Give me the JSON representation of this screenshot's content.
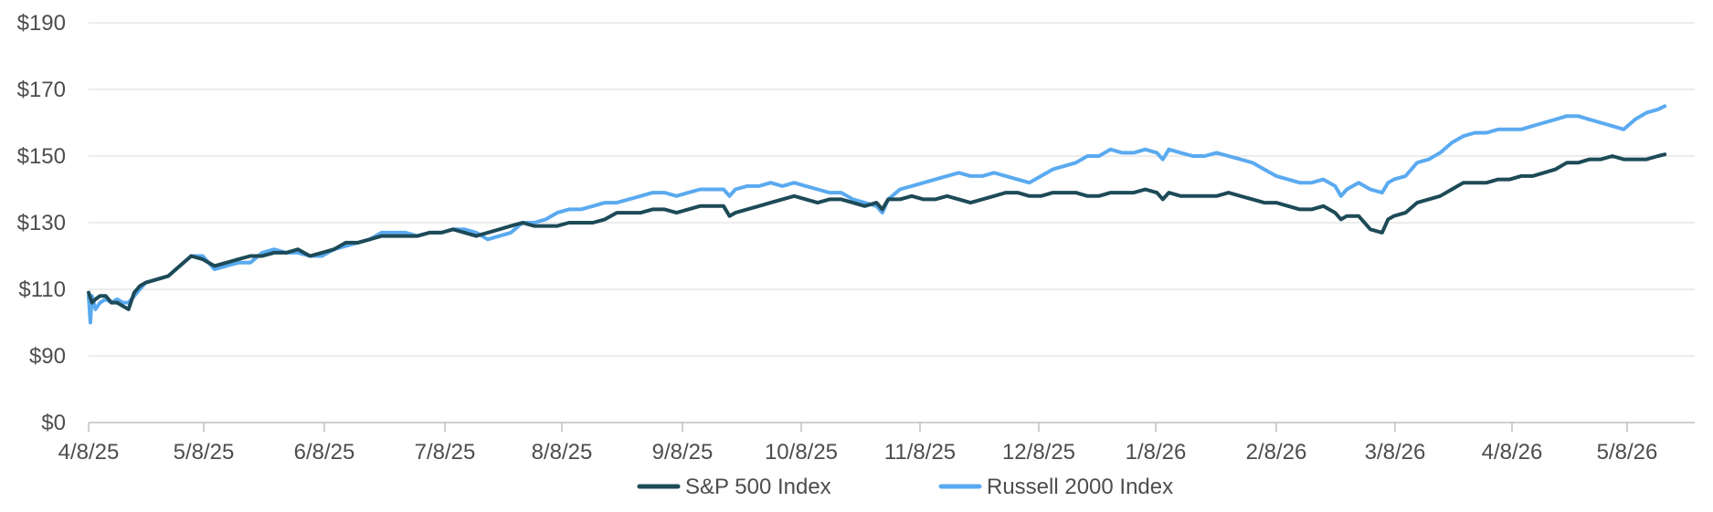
{
  "chart_data": {
    "type": "line",
    "y_ticks": [
      "$0",
      "$90",
      "$110",
      "$130",
      "$150",
      "$170",
      "$190"
    ],
    "x_ticks": [
      "4/8/25",
      "5/8/25",
      "6/8/25",
      "7/8/25",
      "8/8/25",
      "9/8/25",
      "10/8/25",
      "11/8/25",
      "12/8/25",
      "1/8/26",
      "2/8/26",
      "3/8/26",
      "4/8/26",
      "5/8/26"
    ],
    "grid": true,
    "legend_position": "bottom",
    "series": [
      {
        "name": "S&P 500 Index",
        "color": "#1d4a57",
        "points": [
          [
            0,
            109
          ],
          [
            0.3,
            106
          ],
          [
            0.6,
            107
          ],
          [
            1,
            108
          ],
          [
            1.5,
            108
          ],
          [
            2,
            106
          ],
          [
            2.5,
            106
          ],
          [
            3,
            105
          ],
          [
            3.5,
            104
          ],
          [
            4,
            109
          ],
          [
            4.5,
            111
          ],
          [
            5,
            112
          ],
          [
            6,
            113
          ],
          [
            7,
            114
          ],
          [
            8,
            117
          ],
          [
            9,
            120
          ],
          [
            10,
            119
          ],
          [
            11,
            117
          ],
          [
            12,
            118
          ],
          [
            13,
            119
          ],
          [
            14,
            120
          ],
          [
            15,
            120
          ],
          [
            16,
            121
          ],
          [
            17,
            121
          ],
          [
            18,
            122
          ],
          [
            19,
            120
          ],
          [
            20,
            121
          ],
          [
            21,
            122
          ],
          [
            22,
            124
          ],
          [
            23,
            124
          ],
          [
            24,
            125
          ],
          [
            25,
            126
          ],
          [
            26,
            126
          ],
          [
            27,
            126
          ],
          [
            28,
            126
          ],
          [
            29,
            127
          ],
          [
            30,
            127
          ],
          [
            31,
            128
          ],
          [
            32,
            127
          ],
          [
            33,
            126
          ],
          [
            34,
            127
          ],
          [
            35,
            128
          ],
          [
            36,
            129
          ],
          [
            37,
            130
          ],
          [
            38,
            129
          ],
          [
            39,
            129
          ],
          [
            40,
            129
          ],
          [
            41,
            130
          ],
          [
            42,
            130
          ],
          [
            43,
            130
          ],
          [
            44,
            131
          ],
          [
            45,
            133
          ],
          [
            46,
            133
          ],
          [
            47,
            133
          ],
          [
            48,
            134
          ],
          [
            49,
            134
          ],
          [
            50,
            133
          ],
          [
            51,
            134
          ],
          [
            52,
            135
          ],
          [
            53,
            135
          ],
          [
            54,
            135
          ],
          [
            54.5,
            132
          ],
          [
            55,
            133
          ],
          [
            56,
            134
          ],
          [
            57,
            135
          ],
          [
            58,
            136
          ],
          [
            59,
            137
          ],
          [
            60,
            138
          ],
          [
            61,
            137
          ],
          [
            62,
            136
          ],
          [
            63,
            137
          ],
          [
            64,
            137
          ],
          [
            65,
            136
          ],
          [
            66,
            135
          ],
          [
            67,
            136
          ],
          [
            67.5,
            134
          ],
          [
            68,
            137
          ],
          [
            69,
            137
          ],
          [
            70,
            138
          ],
          [
            71,
            137
          ],
          [
            72,
            137
          ],
          [
            73,
            138
          ],
          [
            74,
            137
          ],
          [
            75,
            136
          ],
          [
            76,
            137
          ],
          [
            77,
            138
          ],
          [
            78,
            139
          ],
          [
            79,
            139
          ],
          [
            80,
            138
          ],
          [
            81,
            138
          ],
          [
            82,
            139
          ],
          [
            83,
            139
          ],
          [
            84,
            139
          ],
          [
            85,
            138
          ],
          [
            86,
            138
          ],
          [
            87,
            139
          ],
          [
            88,
            139
          ],
          [
            89,
            139
          ],
          [
            90,
            140
          ],
          [
            91,
            139
          ],
          [
            91.5,
            137
          ],
          [
            92,
            139
          ],
          [
            93,
            138
          ],
          [
            94,
            138
          ],
          [
            95,
            138
          ],
          [
            96,
            138
          ],
          [
            97,
            139
          ],
          [
            98,
            138
          ],
          [
            99,
            137
          ],
          [
            100,
            136
          ],
          [
            101,
            136
          ],
          [
            102,
            135
          ],
          [
            103,
            134
          ],
          [
            104,
            134
          ],
          [
            105,
            135
          ],
          [
            106,
            133
          ],
          [
            106.5,
            131
          ],
          [
            107,
            132
          ],
          [
            108,
            132
          ],
          [
            109,
            128
          ],
          [
            110,
            127
          ],
          [
            110.5,
            131
          ],
          [
            111,
            132
          ],
          [
            112,
            133
          ],
          [
            113,
            136
          ],
          [
            114,
            137
          ],
          [
            115,
            138
          ],
          [
            116,
            140
          ],
          [
            117,
            142
          ],
          [
            118,
            142
          ],
          [
            119,
            142
          ],
          [
            120,
            143
          ],
          [
            121,
            143
          ],
          [
            122,
            144
          ],
          [
            123,
            144
          ],
          [
            124,
            145
          ],
          [
            125,
            146
          ],
          [
            126,
            148
          ],
          [
            127,
            148
          ],
          [
            128,
            149
          ],
          [
            129,
            149
          ],
          [
            130,
            150
          ],
          [
            131,
            149
          ],
          [
            132,
            149
          ],
          [
            133,
            149
          ],
          [
            134,
            150
          ],
          [
            134.6,
            150.5
          ]
        ]
      },
      {
        "name": "Russell 2000 Index",
        "color": "#5aaaf0",
        "points": [
          [
            0,
            108
          ],
          [
            0.15,
            100
          ],
          [
            0.3,
            108
          ],
          [
            0.6,
            104
          ],
          [
            1,
            106
          ],
          [
            1.5,
            107
          ],
          [
            2,
            106
          ],
          [
            2.5,
            107
          ],
          [
            3,
            106
          ],
          [
            3.5,
            106
          ],
          [
            4,
            108
          ],
          [
            4.5,
            110
          ],
          [
            5,
            112
          ],
          [
            6,
            113
          ],
          [
            7,
            114
          ],
          [
            8,
            117
          ],
          [
            9,
            120
          ],
          [
            10,
            120
          ],
          [
            11,
            116
          ],
          [
            12,
            117
          ],
          [
            13,
            118
          ],
          [
            14,
            118
          ],
          [
            15,
            121
          ],
          [
            16,
            122
          ],
          [
            17,
            121
          ],
          [
            18,
            121
          ],
          [
            19,
            120
          ],
          [
            20,
            120
          ],
          [
            21,
            122
          ],
          [
            22,
            123
          ],
          [
            23,
            124
          ],
          [
            24,
            125
          ],
          [
            25,
            127
          ],
          [
            26,
            127
          ],
          [
            27,
            127
          ],
          [
            28,
            126
          ],
          [
            29,
            127
          ],
          [
            30,
            127
          ],
          [
            31,
            128
          ],
          [
            32,
            128
          ],
          [
            33,
            127
          ],
          [
            34,
            125
          ],
          [
            35,
            126
          ],
          [
            36,
            127
          ],
          [
            37,
            130
          ],
          [
            38,
            130
          ],
          [
            39,
            131
          ],
          [
            40,
            133
          ],
          [
            41,
            134
          ],
          [
            42,
            134
          ],
          [
            43,
            135
          ],
          [
            44,
            136
          ],
          [
            45,
            136
          ],
          [
            46,
            137
          ],
          [
            47,
            138
          ],
          [
            48,
            139
          ],
          [
            49,
            139
          ],
          [
            50,
            138
          ],
          [
            51,
            139
          ],
          [
            52,
            140
          ],
          [
            53,
            140
          ],
          [
            54,
            140
          ],
          [
            54.5,
            138
          ],
          [
            55,
            140
          ],
          [
            56,
            141
          ],
          [
            57,
            141
          ],
          [
            58,
            142
          ],
          [
            59,
            141
          ],
          [
            60,
            142
          ],
          [
            61,
            141
          ],
          [
            62,
            140
          ],
          [
            63,
            139
          ],
          [
            64,
            139
          ],
          [
            65,
            137
          ],
          [
            66,
            136
          ],
          [
            67,
            135
          ],
          [
            67.5,
            133
          ],
          [
            68,
            137
          ],
          [
            69,
            140
          ],
          [
            70,
            141
          ],
          [
            71,
            142
          ],
          [
            72,
            143
          ],
          [
            73,
            144
          ],
          [
            74,
            145
          ],
          [
            75,
            144
          ],
          [
            76,
            144
          ],
          [
            77,
            145
          ],
          [
            78,
            144
          ],
          [
            79,
            143
          ],
          [
            80,
            142
          ],
          [
            81,
            144
          ],
          [
            82,
            146
          ],
          [
            83,
            147
          ],
          [
            84,
            148
          ],
          [
            85,
            150
          ],
          [
            86,
            150
          ],
          [
            87,
            152
          ],
          [
            88,
            151
          ],
          [
            89,
            151
          ],
          [
            90,
            152
          ],
          [
            91,
            151
          ],
          [
            91.5,
            149
          ],
          [
            92,
            152
          ],
          [
            93,
            151
          ],
          [
            94,
            150
          ],
          [
            95,
            150
          ],
          [
            96,
            151
          ],
          [
            97,
            150
          ],
          [
            98,
            149
          ],
          [
            99,
            148
          ],
          [
            100,
            146
          ],
          [
            101,
            144
          ],
          [
            102,
            143
          ],
          [
            103,
            142
          ],
          [
            104,
            142
          ],
          [
            105,
            143
          ],
          [
            106,
            141
          ],
          [
            106.5,
            138
          ],
          [
            107,
            140
          ],
          [
            108,
            142
          ],
          [
            109,
            140
          ],
          [
            110,
            139
          ],
          [
            110.5,
            142
          ],
          [
            111,
            143
          ],
          [
            112,
            144
          ],
          [
            113,
            148
          ],
          [
            114,
            149
          ],
          [
            115,
            151
          ],
          [
            116,
            154
          ],
          [
            117,
            156
          ],
          [
            118,
            157
          ],
          [
            119,
            157
          ],
          [
            120,
            158
          ],
          [
            121,
            158
          ],
          [
            122,
            158
          ],
          [
            123,
            159
          ],
          [
            124,
            160
          ],
          [
            125,
            161
          ],
          [
            126,
            162
          ],
          [
            127,
            162
          ],
          [
            128,
            161
          ],
          [
            129,
            160
          ],
          [
            130,
            159
          ],
          [
            131,
            158
          ],
          [
            132,
            161
          ],
          [
            133,
            163
          ],
          [
            134,
            164
          ],
          [
            134.6,
            165
          ]
        ]
      }
    ]
  }
}
